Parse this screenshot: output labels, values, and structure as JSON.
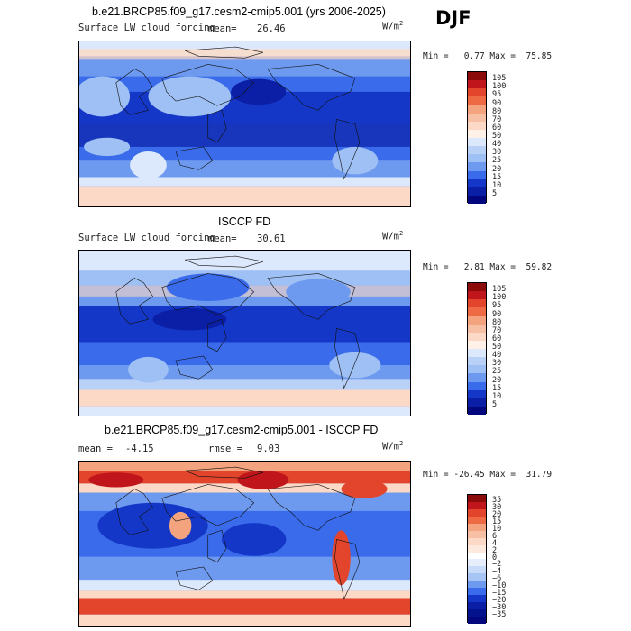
{
  "season": "DJF",
  "colors": {
    "ocean_deep": "#1437c8",
    "ocean_mid": "#3a6bea",
    "ocean_light": "#9ec0f4",
    "pale": "#dce8fb",
    "warm_light": "#fbd9c6",
    "warm_mid": "#f3a37d",
    "warm_red": "#e2452c",
    "dark_red": "#8b0a0a",
    "navy": "#03077d"
  },
  "panels": [
    {
      "id": "model",
      "title": "b.e21.BRCP85.f09_g17.cesm2-cmip5.001 (yrs 2006-2025)",
      "variable": "Surface LW cloud forcing",
      "mean_label": "mean=",
      "mean_value": "26.46",
      "rmse_label": "",
      "rmse_value": "",
      "unit": "W/m",
      "unit_exp": "2",
      "min_label": "Min =",
      "min_value": "0.77",
      "max_label": "Max =",
      "max_value": "75.85",
      "colorbar": {
        "levels": [
          "105",
          "100",
          "95",
          "90",
          "80",
          "70",
          "60",
          "50",
          "40",
          "30",
          "25",
          "20",
          "15",
          "10",
          "5"
        ],
        "colors": [
          "#8b0a0a",
          "#c0151a",
          "#e2452c",
          "#ee6a45",
          "#f3a37d",
          "#f7bfa3",
          "#fbd9c6",
          "#fff1e8",
          "#dce8fb",
          "#b9d1f7",
          "#9ec0f4",
          "#6d99ee",
          "#3a6bea",
          "#1437c8",
          "#0a1fa6",
          "#03077d"
        ]
      }
    },
    {
      "id": "obs",
      "title": "ISCCP FD",
      "variable": "Surface LW cloud forcing",
      "mean_label": "mean=",
      "mean_value": "30.61",
      "rmse_label": "",
      "rmse_value": "",
      "unit": "W/m",
      "unit_exp": "2",
      "min_label": "Min =",
      "min_value": "2.81",
      "max_label": "Max =",
      "max_value": "59.82",
      "colorbar": {
        "levels": [
          "105",
          "100",
          "95",
          "90",
          "80",
          "70",
          "60",
          "50",
          "40",
          "30",
          "25",
          "20",
          "15",
          "10",
          "5"
        ],
        "colors": [
          "#8b0a0a",
          "#c0151a",
          "#e2452c",
          "#ee6a45",
          "#f3a37d",
          "#f7bfa3",
          "#fbd9c6",
          "#fff1e8",
          "#dce8fb",
          "#b9d1f7",
          "#9ec0f4",
          "#6d99ee",
          "#3a6bea",
          "#1437c8",
          "#0a1fa6",
          "#03077d"
        ]
      }
    },
    {
      "id": "diff",
      "title": "b.e21.BRCP85.f09_g17.cesm2-cmip5.001 - ISCCP FD",
      "variable": "",
      "mean_label": "mean =",
      "mean_value": "-4.15",
      "rmse_label": "rmse =",
      "rmse_value": "9.03",
      "unit": "W/m",
      "unit_exp": "2",
      "min_label": "Min =",
      "min_value": "-26.45",
      "max_label": "Max =",
      "max_value": "31.79",
      "colorbar": {
        "levels": [
          "35",
          "30",
          "20",
          "15",
          "10",
          "6",
          "4",
          "2",
          "0",
          "−2",
          "−4",
          "−6",
          "−10",
          "−15",
          "−20",
          "−30",
          "−35"
        ],
        "colors": [
          "#8b0a0a",
          "#c0151a",
          "#e2452c",
          "#ee6a45",
          "#f3a37d",
          "#f7bfa3",
          "#fbd9c6",
          "#fde9de",
          "#ffffff",
          "#e6eefc",
          "#c8dbf8",
          "#a7c5f4",
          "#6d99ee",
          "#3a6bea",
          "#1437c8",
          "#0a1fa6",
          "#05128d",
          "#03077d"
        ]
      }
    }
  ]
}
